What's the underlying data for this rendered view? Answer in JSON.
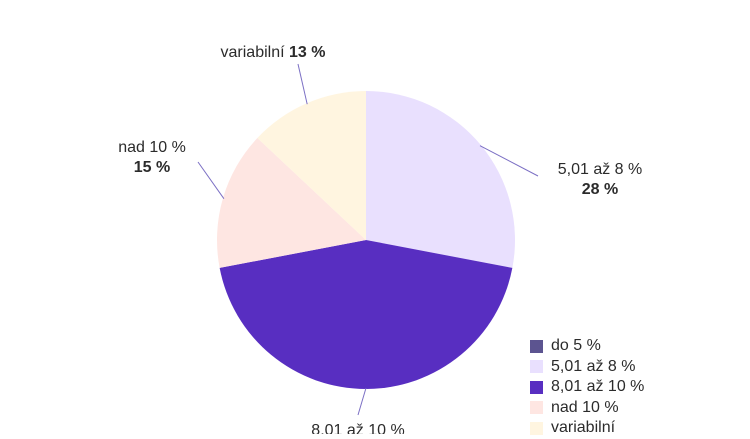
{
  "chart_data": {
    "type": "pie",
    "title": "",
    "series": [
      {
        "name": "do 5 %",
        "value": 0,
        "value_label": "",
        "color": "#5c5490"
      },
      {
        "name": "5,01 až 8 %",
        "value": 28,
        "value_label": "28 %",
        "color": "#e9e0fe"
      },
      {
        "name": "8,01 až 10 %",
        "value": 44,
        "value_label": "",
        "color": "#582ec1"
      },
      {
        "name": "nad 10 %",
        "value": 15,
        "value_label": "15 %",
        "color": "#fee6e2"
      },
      {
        "name": "variabilní",
        "value": 13,
        "value_label": "13 %",
        "color": "#fff5e0"
      }
    ],
    "legend_position": "bottom-right"
  }
}
